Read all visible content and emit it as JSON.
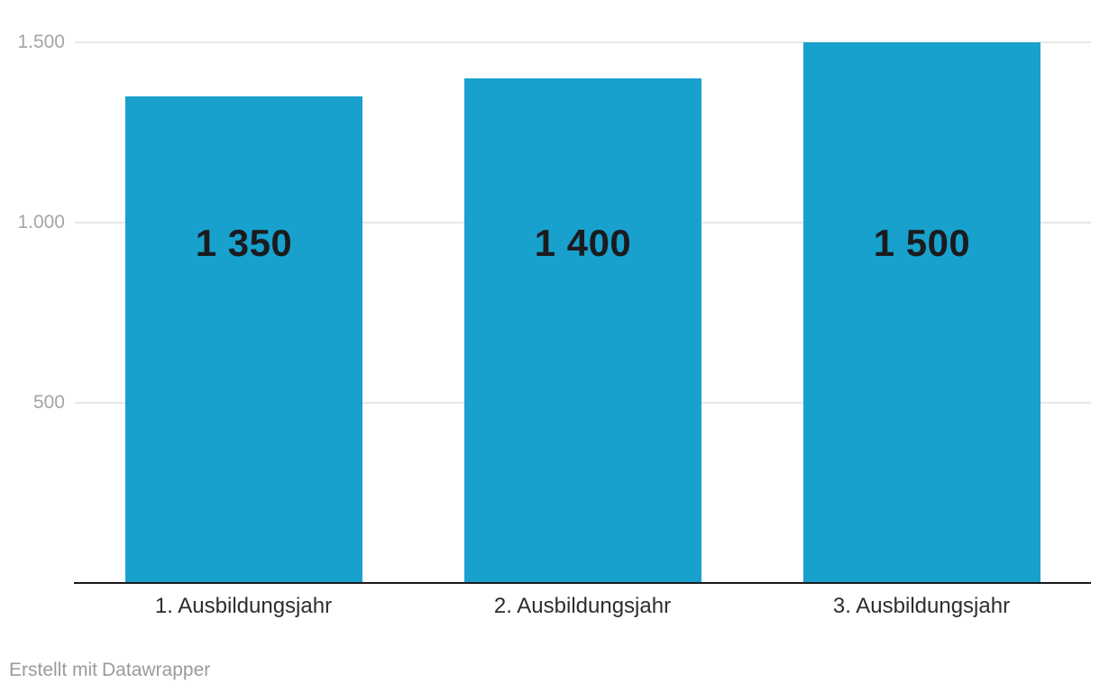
{
  "chart_data": {
    "type": "bar",
    "title": "",
    "xlabel": "",
    "ylabel": "",
    "categories": [
      "1. Ausbildungsjahr",
      "2. Ausbildungsjahr",
      "3. Ausbildungsjahr"
    ],
    "values": [
      1350,
      1400,
      1500
    ],
    "value_labels": [
      "1 350",
      "1 400",
      "1 500"
    ],
    "y_ticks": [
      {
        "value": 500,
        "label": "500"
      },
      {
        "value": 1000,
        "label": "1.000"
      },
      {
        "value": 1500,
        "label": "1.500"
      }
    ],
    "ylim": [
      0,
      1500
    ],
    "grid": true,
    "legend_position": "none",
    "bar_color": "#18a1cd",
    "value_label_color": "#1b1b1e",
    "axis_line_color": "#1a1a1c",
    "gridline_color": "#e6e6e6",
    "tick_label_color": "#a5a5a5"
  },
  "footer": {
    "prefix": "Erstellt mit",
    "link_label": "Datawrapper"
  }
}
